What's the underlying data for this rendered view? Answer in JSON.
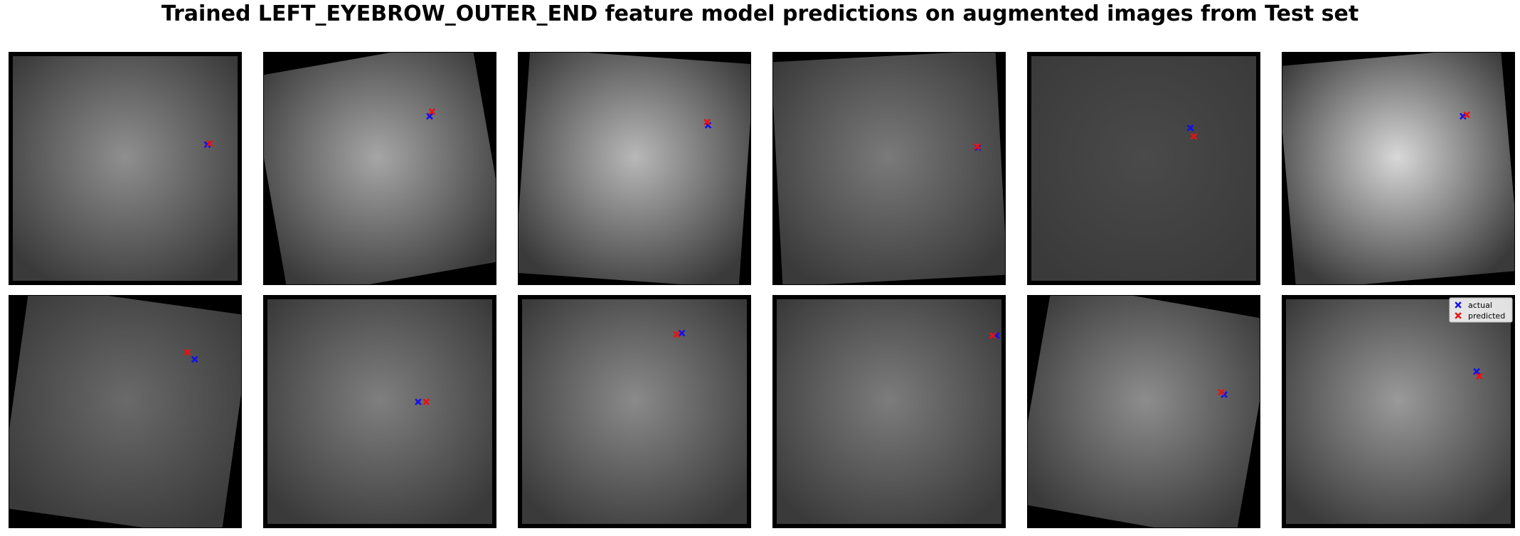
{
  "figure": {
    "title": "Trained LEFT_EYEBROW_OUTER_END feature model predictions on augmented images from Test set"
  },
  "legend": {
    "actual": "actual",
    "predicted": "predicted",
    "placement": "top-right of last panel"
  },
  "colors": {
    "actual": "#1010ee",
    "predicted": "#ee1010",
    "panel_border": "#000000",
    "background_fill": "#000000"
  },
  "chart_data": {
    "type": "scatter",
    "axes_visible": false,
    "image_size": [
      96,
      96
    ],
    "xlim": [
      0,
      96
    ],
    "ylim": [
      96,
      0
    ],
    "series": [
      {
        "name": "actual"
      },
      {
        "name": "predicted"
      }
    ],
    "panels": [
      {
        "actual": [
          81.8,
          38.2
        ],
        "predicted": [
          82.8,
          37.7
        ],
        "aug": {
          "rot": 0,
          "tint": "#8f8f8f"
        }
      },
      {
        "actual": [
          68.5,
          26.5
        ],
        "predicted": [
          69.5,
          24.6
        ],
        "aug": {
          "rot": -10,
          "tint": "#a6a6a6"
        }
      },
      {
        "actual": [
          78.3,
          30.2
        ],
        "predicted": [
          77.9,
          28.9
        ],
        "aug": {
          "rot": 4,
          "tint": "#b8b8b8"
        }
      },
      {
        "actual": [
          84.5,
          39.4
        ],
        "predicted": [
          84.3,
          39.0
        ],
        "aug": {
          "rot": -3,
          "tint": "#7a7a7a"
        }
      },
      {
        "actual": [
          67.2,
          31.3
        ],
        "predicted": [
          68.6,
          34.8
        ],
        "aug": {
          "rot": 0,
          "tint": "#4a4a4a"
        }
      },
      {
        "actual": [
          74.6,
          26.5
        ],
        "predicted": [
          76.1,
          25.9
        ],
        "aug": {
          "rot": -5,
          "tint": "#d8d8d8"
        }
      },
      {
        "actual": [
          76.6,
          26.5
        ],
        "predicted": [
          73.6,
          23.6
        ],
        "aug": {
          "rot": 8,
          "tint": "#6a6a6a"
        }
      },
      {
        "actual": [
          63.8,
          44.0
        ],
        "predicted": [
          67.1,
          44.0
        ],
        "aug": {
          "rot": 0,
          "tint": "#7f7f7f"
        }
      },
      {
        "actual": [
          67.5,
          15.7
        ],
        "predicted": [
          65.4,
          16.2
        ],
        "aug": {
          "rot": 0,
          "tint": "#8a8a8a"
        }
      },
      {
        "actual": [
          92.2,
          16.7
        ],
        "predicted": [
          90.6,
          16.7
        ],
        "aug": {
          "rot": 0,
          "tint": "#7c7c7c"
        }
      },
      {
        "actual": [
          81.1,
          41.0
        ],
        "predicted": [
          79.9,
          40.0
        ],
        "aug": {
          "rot": 10,
          "tint": "#8d8d8d"
        }
      },
      {
        "actual": [
          80.2,
          31.5
        ],
        "predicted": [
          81.3,
          33.4
        ],
        "aug": {
          "rot": 0,
          "tint": "#9a9a9a"
        }
      }
    ]
  }
}
